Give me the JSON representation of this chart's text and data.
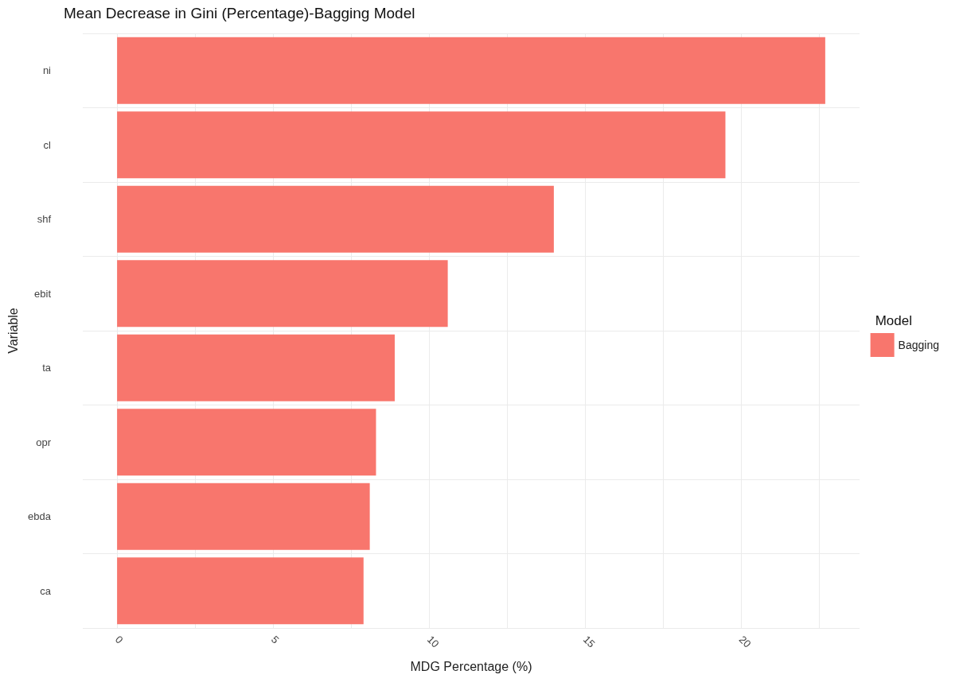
{
  "chart_data": {
    "type": "bar",
    "orientation": "horizontal",
    "title": "Mean Decrease in Gini (Percentage)-Bagging Model",
    "xlabel": "MDG Percentage (%)",
    "ylabel": "Variable",
    "legend_title": "Model",
    "categories": [
      "ni",
      "cl",
      "shf",
      "ebit",
      "ta",
      "opr",
      "ebda",
      "ca"
    ],
    "series": [
      {
        "name": "Bagging",
        "color": "#f8766d",
        "values": [
          22.7,
          19.5,
          14.0,
          10.6,
          8.9,
          8.3,
          8.1,
          7.9
        ]
      }
    ],
    "xlim": [
      -1.1,
      23.8
    ],
    "xticks": [
      0,
      {
        "value": 2.5,
        "label": null
      },
      5,
      {
        "value": 7.5,
        "label": null
      },
      10,
      {
        "value": 12.5,
        "label": null
      },
      15,
      {
        "value": 17.5,
        "label": null
      },
      20,
      {
        "value": 22.5,
        "label": null
      }
    ],
    "grid": true,
    "legend": "right"
  }
}
